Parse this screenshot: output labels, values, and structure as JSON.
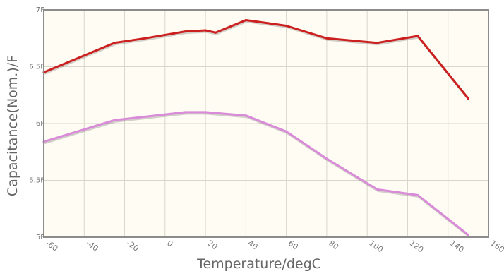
{
  "chart_data": {
    "type": "line",
    "title": "",
    "xlabel": "Temperature/degC",
    "ylabel": "Capacitance(Nom.)/F",
    "xlim": [
      -60,
      160
    ],
    "ylim": [
      5,
      7
    ],
    "x_ticks": [
      -60,
      -40,
      -20,
      0,
      20,
      40,
      60,
      80,
      100,
      120,
      140,
      160
    ],
    "x_tick_labels": [
      "-60",
      "-40",
      "-20",
      "0",
      "20",
      "40",
      "60",
      "80",
      "100",
      "120",
      "140",
      "160"
    ],
    "y_ticks": [
      5,
      5.5,
      6,
      6.5,
      7
    ],
    "y_tick_labels": [
      "5F",
      "5.5F",
      "6F",
      "6.5F",
      "7F"
    ],
    "grid": true,
    "series": [
      {
        "color": "#cc1f1f",
        "x": [
          -60,
          -25,
          -10,
          10,
          20,
          25,
          40,
          60,
          80,
          105,
          125,
          150
        ],
        "y": [
          6.45,
          6.71,
          6.75,
          6.81,
          6.82,
          6.8,
          6.91,
          6.86,
          6.75,
          6.71,
          6.77,
          6.22
        ]
      },
      {
        "color": "#d98ad9",
        "x": [
          -60,
          -25,
          10,
          20,
          40,
          60,
          80,
          105,
          125,
          150
        ],
        "y": [
          5.84,
          6.03,
          6.1,
          6.1,
          6.07,
          5.93,
          5.69,
          5.42,
          5.37,
          5.02
        ]
      }
    ]
  }
}
